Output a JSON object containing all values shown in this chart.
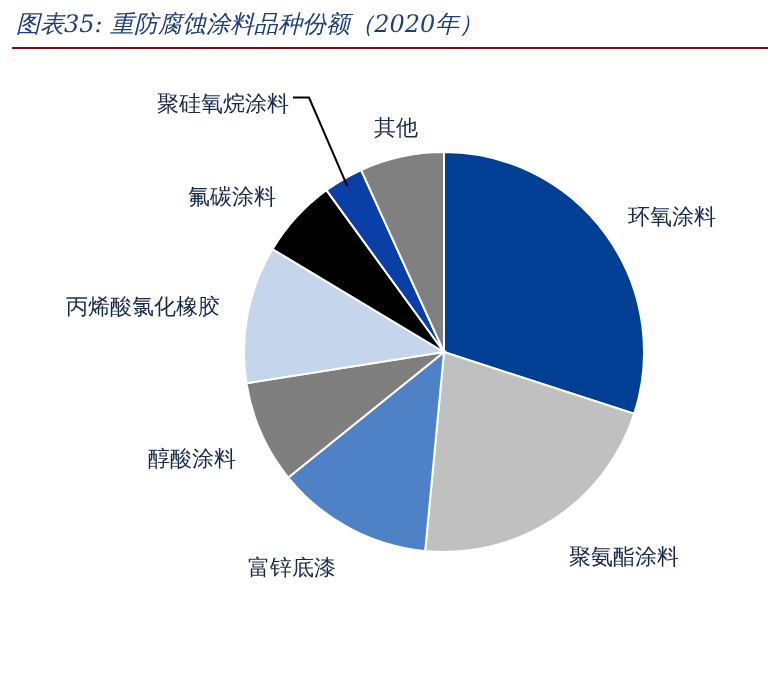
{
  "chart_data": {
    "type": "pie",
    "title": "图表35:  重防腐蚀涂料品种份额（2020年）",
    "categories": [
      "环氧涂料",
      "聚氨酯涂料",
      "富锌底漆",
      "醇酸涂料",
      "丙烯酸氯化橡胶",
      "氟碳涂料",
      "聚硅氧烷涂料",
      "其他"
    ],
    "values": [
      30,
      21.5,
      12.7,
      8.3,
      11.1,
      6.4,
      3.2,
      6.8
    ],
    "colors": [
      "#003f94",
      "#c0c0c0",
      "#4f81c7",
      "#7f7f7f",
      "#c5d5ec",
      "#000000",
      "#0b3fa8",
      "#808080"
    ],
    "legend": false
  }
}
